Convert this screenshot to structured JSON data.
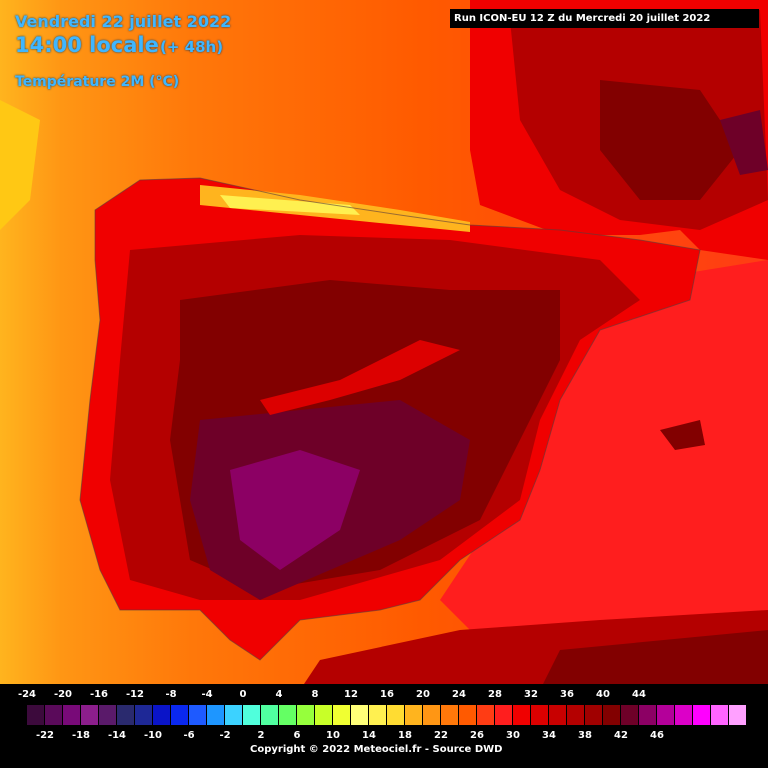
{
  "header": {
    "date": "Vendredi 22 juillet 2022",
    "time": "14:00 locale",
    "offset": "(+ 48h)",
    "variable": "Température 2M (°C)"
  },
  "run_banner": "Run ICON-EU 12 Z du Mercredi 20 juillet 2022",
  "legend": {
    "labels_top": [
      "-24",
      "-20",
      "-16",
      "-12",
      "-8",
      "-4",
      "0",
      "4",
      "8",
      "12",
      "16",
      "20",
      "24",
      "28",
      "32",
      "36",
      "40",
      "44"
    ],
    "labels_bottom": [
      "-22",
      "-18",
      "-14",
      "-10",
      "-6",
      "-2",
      "2",
      "6",
      "10",
      "14",
      "18",
      "22",
      "26",
      "30",
      "34",
      "38",
      "42",
      "46"
    ],
    "colors": [
      "#3c0a3c",
      "#5a0a5a",
      "#780a78",
      "#8c1e8c",
      "#5a1a6a",
      "#2a2a6e",
      "#1e2896",
      "#0a14c8",
      "#0a28f0",
      "#1e5aff",
      "#1e96ff",
      "#3cd2ff",
      "#50ffdc",
      "#50ffa0",
      "#64ff64",
      "#96ff3c",
      "#c8ff28",
      "#f0ff32",
      "#ffff78",
      "#fff050",
      "#ffdc32",
      "#ffb41e",
      "#ff9614",
      "#ff780a",
      "#ff5a00",
      "#ff3c14",
      "#ff1e1e",
      "#f00000",
      "#dc0000",
      "#c80000",
      "#b40000",
      "#a00000",
      "#820000",
      "#6e0028",
      "#8c0064",
      "#b4009a",
      "#dc00c8",
      "#ff00ff",
      "#ff64ff",
      "#ffa0ff"
    ],
    "copyright": "Copyright © 2022 Meteociel.fr - Source DWD"
  }
}
